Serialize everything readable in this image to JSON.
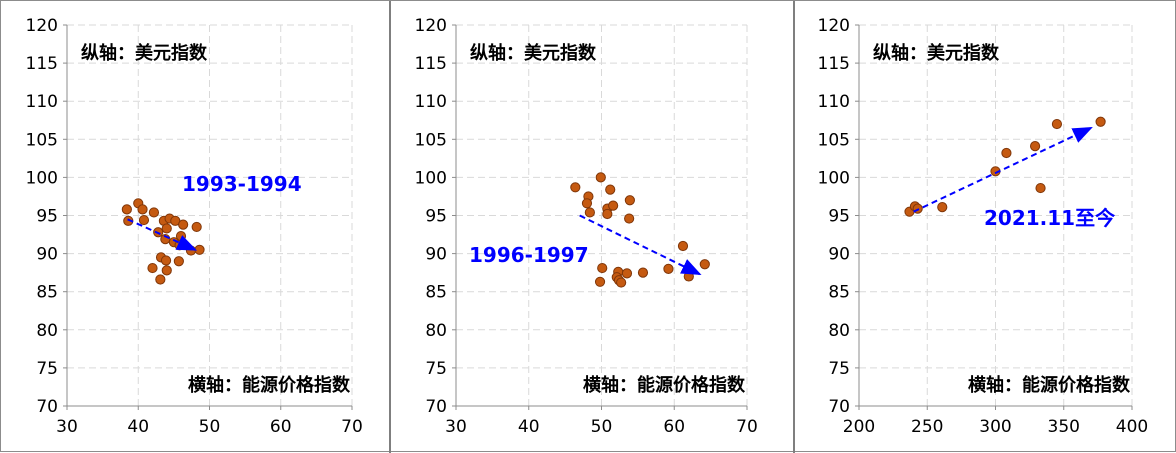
{
  "chart_data": [
    {
      "type": "scatter",
      "x_range": [
        30,
        70
      ],
      "ylim": [
        70,
        120
      ],
      "x_ticks": [
        30,
        40,
        50,
        60,
        70
      ],
      "y_ticks": [
        70,
        75,
        80,
        85,
        90,
        95,
        100,
        105,
        110,
        115,
        120
      ],
      "grid": true,
      "annotations": {
        "top_label": "纵轴：美元指数",
        "bottom_label": "横轴：能源价格指数",
        "period_label": "1993-1994"
      },
      "trend_arrow": {
        "from": [
          38.5,
          94.5
        ],
        "to": [
          48.0,
          90.5
        ]
      },
      "points": [
        [
          38.4,
          95.8
        ],
        [
          38.6,
          94.3
        ],
        [
          40.0,
          96.6
        ],
        [
          40.6,
          95.8
        ],
        [
          40.8,
          94.4
        ],
        [
          42.2,
          95.4
        ],
        [
          42.8,
          92.8
        ],
        [
          43.6,
          94.3
        ],
        [
          43.8,
          91.9
        ],
        [
          44.4,
          94.6
        ],
        [
          44.0,
          93.3
        ],
        [
          45.2,
          94.3
        ],
        [
          45.0,
          91.5
        ],
        [
          46.0,
          92.3
        ],
        [
          46.3,
          93.8
        ],
        [
          48.2,
          93.5
        ],
        [
          47.4,
          90.4
        ],
        [
          48.6,
          90.5
        ],
        [
          42.0,
          88.1
        ],
        [
          43.2,
          89.5
        ],
        [
          43.9,
          89.1
        ],
        [
          44.0,
          87.8
        ],
        [
          43.1,
          86.6
        ],
        [
          45.7,
          89.0
        ],
        [
          45.8,
          91.1
        ]
      ]
    },
    {
      "type": "scatter",
      "x_range": [
        30,
        70
      ],
      "ylim": [
        70,
        120
      ],
      "x_ticks": [
        30,
        40,
        50,
        60,
        70
      ],
      "y_ticks": [
        70,
        75,
        80,
        85,
        90,
        95,
        100,
        105,
        110,
        115,
        120
      ],
      "grid": true,
      "annotations": {
        "top_label": "纵轴：美元指数",
        "bottom_label": "横轴：能源价格指数",
        "period_label": "1996-1997"
      },
      "trend_arrow": {
        "from": [
          47.0,
          95.0
        ],
        "to": [
          63.5,
          87.3
        ]
      },
      "points": [
        [
          46.4,
          98.7
        ],
        [
          48.2,
          97.5
        ],
        [
          49.9,
          100.0
        ],
        [
          51.2,
          98.4
        ],
        [
          53.9,
          97.0
        ],
        [
          48.0,
          96.6
        ],
        [
          48.4,
          95.4
        ],
        [
          50.8,
          95.9
        ],
        [
          51.6,
          96.3
        ],
        [
          50.8,
          95.2
        ],
        [
          53.8,
          94.6
        ],
        [
          61.2,
          91.0
        ],
        [
          64.2,
          88.6
        ],
        [
          59.2,
          88.0
        ],
        [
          55.7,
          87.5
        ],
        [
          50.1,
          88.1
        ],
        [
          52.3,
          87.6
        ],
        [
          53.5,
          87.4
        ],
        [
          52.1,
          86.9
        ],
        [
          52.4,
          86.5
        ],
        [
          52.7,
          86.2
        ],
        [
          49.8,
          86.3
        ],
        [
          62.0,
          87.0
        ]
      ]
    },
    {
      "type": "scatter",
      "x_range": [
        200,
        400
      ],
      "ylim": [
        70,
        120
      ],
      "x_ticks": [
        200,
        250,
        300,
        350,
        400
      ],
      "y_ticks": [
        70,
        75,
        80,
        85,
        90,
        95,
        100,
        105,
        110,
        115,
        120
      ],
      "grid": true,
      "annotations": {
        "top_label": "纵轴：美元指数",
        "bottom_label": "横轴：能源价格指数",
        "period_label": "2021.11至今"
      },
      "trend_arrow": {
        "from": [
          240,
          95.5
        ],
        "to": [
          370,
          106.5
        ]
      },
      "points": [
        [
          237,
          95.5
        ],
        [
          241,
          96.2
        ],
        [
          243,
          95.9
        ],
        [
          261,
          96.1
        ],
        [
          300,
          100.8
        ],
        [
          308,
          103.2
        ],
        [
          329,
          104.1
        ],
        [
          333,
          98.6
        ],
        [
          345,
          107.0
        ],
        [
          377,
          107.3
        ]
      ]
    }
  ],
  "colors": {
    "point_fill": "#c55a11",
    "point_stroke": "#7f3609",
    "arrow": "#0000ff",
    "grid": "#d9d9d9",
    "axis": "#8c8c8c",
    "label_text": "#000000",
    "period_text": "#0000ff"
  }
}
